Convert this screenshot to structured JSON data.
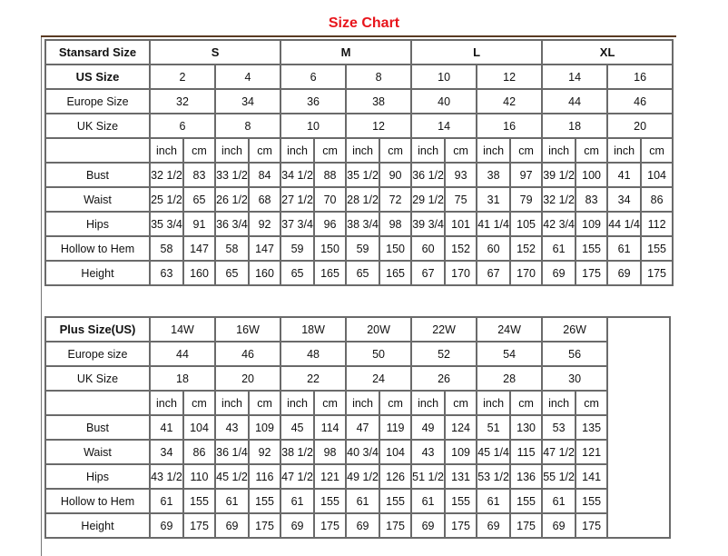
{
  "title": "Size Chart",
  "standard": {
    "header_label": "Stansard Size",
    "groups": [
      "S",
      "M",
      "L",
      "XL"
    ],
    "us_label": "US Size",
    "us": [
      "2",
      "4",
      "6",
      "8",
      "10",
      "12",
      "14",
      "16"
    ],
    "europe_label": "Europe Size",
    "europe": [
      "32",
      "34",
      "36",
      "38",
      "40",
      "42",
      "44",
      "46"
    ],
    "uk_label": "UK Size",
    "uk": [
      "6",
      "8",
      "10",
      "12",
      "14",
      "16",
      "18",
      "20"
    ],
    "unit_inch": "inch",
    "unit_cm": "cm",
    "measurements": [
      {
        "label": "Bust",
        "values": [
          "32 1/2",
          "83",
          "33 1/2",
          "84",
          "34 1/2",
          "88",
          "35 1/2",
          "90",
          "36 1/2",
          "93",
          "38",
          "97",
          "39 1/2",
          "100",
          "41",
          "104"
        ]
      },
      {
        "label": "Waist",
        "values": [
          "25 1/2",
          "65",
          "26 1/2",
          "68",
          "27 1/2",
          "70",
          "28 1/2",
          "72",
          "29 1/2",
          "75",
          "31",
          "79",
          "32 1/2",
          "83",
          "34",
          "86"
        ]
      },
      {
        "label": "Hips",
        "values": [
          "35 3/4",
          "91",
          "36 3/4",
          "92",
          "37 3/4",
          "96",
          "38 3/4",
          "98",
          "39 3/4",
          "101",
          "41 1/4",
          "105",
          "42 3/4",
          "109",
          "44 1/4",
          "112"
        ]
      },
      {
        "label": "Hollow to Hem",
        "values": [
          "58",
          "147",
          "58",
          "147",
          "59",
          "150",
          "59",
          "150",
          "60",
          "152",
          "60",
          "152",
          "61",
          "155",
          "61",
          "155"
        ]
      },
      {
        "label": "Height",
        "values": [
          "63",
          "160",
          "65",
          "160",
          "65",
          "165",
          "65",
          "165",
          "67",
          "170",
          "67",
          "170",
          "69",
          "175",
          "69",
          "175"
        ]
      }
    ]
  },
  "plus": {
    "header_label": "Plus Size(US)",
    "sizes": [
      "14W",
      "16W",
      "18W",
      "20W",
      "22W",
      "24W",
      "26W"
    ],
    "europe_label": "Europe size",
    "europe": [
      "44",
      "46",
      "48",
      "50",
      "52",
      "54",
      "56"
    ],
    "uk_label": "UK Size",
    "uk": [
      "18",
      "20",
      "22",
      "24",
      "26",
      "28",
      "30"
    ],
    "unit_inch": "inch",
    "unit_cm": "cm",
    "measurements": [
      {
        "label": "Bust",
        "values": [
          "41",
          "104",
          "43",
          "109",
          "45",
          "114",
          "47",
          "119",
          "49",
          "124",
          "51",
          "130",
          "53",
          "135"
        ]
      },
      {
        "label": "Waist",
        "values": [
          "34",
          "86",
          "36 1/4",
          "92",
          "38 1/2",
          "98",
          "40 3/4",
          "104",
          "43",
          "109",
          "45 1/4",
          "115",
          "47 1/2",
          "121"
        ]
      },
      {
        "label": "Hips",
        "values": [
          "43 1/2",
          "110",
          "45 1/2",
          "116",
          "47 1/2",
          "121",
          "49 1/2",
          "126",
          "51 1/2",
          "131",
          "53 1/2",
          "136",
          "55 1/2",
          "141"
        ]
      },
      {
        "label": "Hollow to Hem",
        "values": [
          "61",
          "155",
          "61",
          "155",
          "61",
          "155",
          "61",
          "155",
          "61",
          "155",
          "61",
          "155",
          "61",
          "155"
        ]
      },
      {
        "label": "Height",
        "values": [
          "69",
          "175",
          "69",
          "175",
          "69",
          "175",
          "69",
          "175",
          "69",
          "175",
          "69",
          "175",
          "69",
          "175"
        ]
      }
    ]
  }
}
